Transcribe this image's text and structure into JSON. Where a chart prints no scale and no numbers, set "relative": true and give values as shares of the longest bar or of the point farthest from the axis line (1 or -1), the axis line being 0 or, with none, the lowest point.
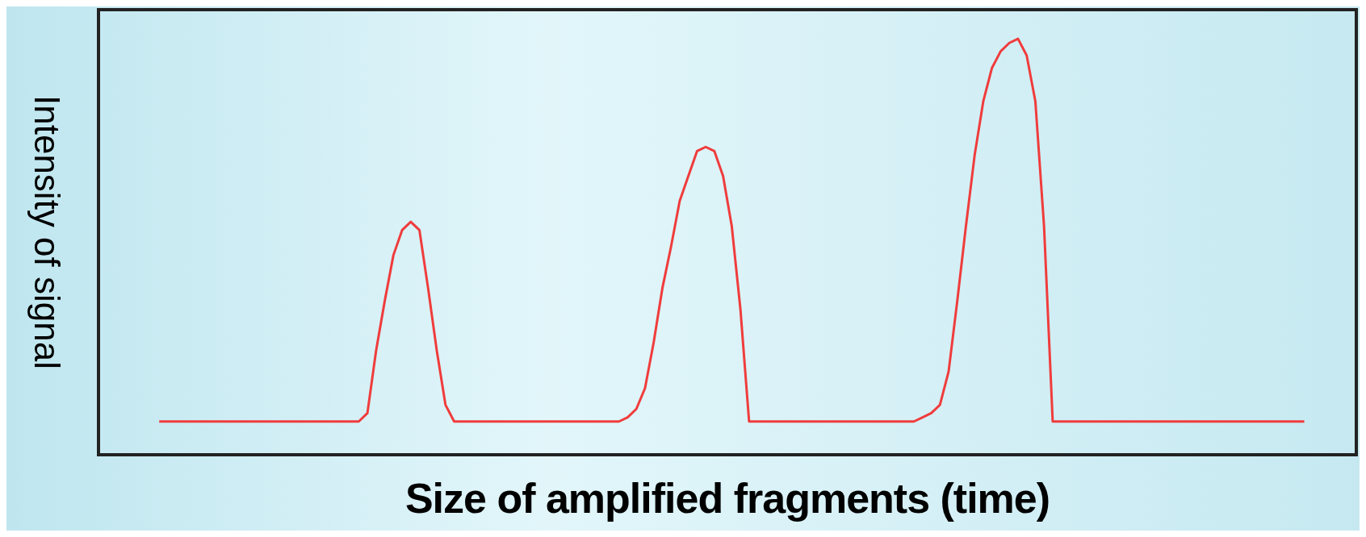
{
  "chart_data": {
    "type": "line",
    "relative": true,
    "xlabel": "Size of amplified fragments (time)",
    "ylabel": "Intensity of signal",
    "categories": [
      null,
      null,
      null,
      null,
      null,
      null,
      null,
      null,
      null,
      null,
      null,
      null,
      null,
      null,
      null,
      null,
      null,
      null,
      null,
      null,
      null,
      null,
      null,
      null,
      null,
      null,
      null,
      null,
      null,
      null,
      null,
      null,
      null,
      null,
      null,
      null,
      null,
      null,
      null,
      null,
      null,
      null,
      null,
      null,
      null,
      null,
      null,
      null,
      null,
      null,
      null,
      null,
      null,
      null,
      null,
      null,
      null,
      null,
      null,
      null,
      null,
      null,
      null,
      null,
      null,
      null,
      null,
      null,
      null,
      null,
      null,
      null,
      null,
      null,
      null,
      null,
      null,
      null,
      null,
      null,
      null,
      null,
      null,
      null,
      null,
      null,
      null,
      null,
      null,
      null,
      null,
      null,
      null,
      null,
      null,
      null,
      null,
      null,
      null,
      null,
      null,
      null,
      null,
      null,
      null,
      null,
      null,
      null,
      null,
      null,
      null,
      null,
      null,
      null,
      null,
      null,
      null,
      null,
      null,
      null,
      null,
      null,
      null,
      null,
      null,
      null,
      null,
      null,
      null,
      null,
      null,
      null,
      null,
      null,
      null,
      null,
      null,
      null,
      null,
      null,
      null,
      null,
      null,
      null,
      null,
      null
    ],
    "series": [
      {
        "color": "#f03c3c",
        "values": [
          null,
          null,
          null,
          null,
          null,
          null,
          null,
          0.08,
          0.08,
          0.08,
          0.08,
          0.08,
          0.08,
          0.08,
          0.08,
          0.08,
          0.08,
          0.08,
          0.08,
          0.08,
          0.08,
          0.08,
          0.08,
          0.08,
          0.08,
          0.08,
          0.08,
          0.08,
          0.08,
          0.08,
          0.08,
          0.1,
          0.25,
          0.37,
          0.48,
          0.54,
          0.56,
          0.54,
          0.4,
          0.25,
          0.12,
          0.08,
          0.08,
          0.08,
          0.08,
          0.08,
          0.08,
          0.08,
          0.08,
          0.08,
          0.08,
          0.08,
          0.08,
          0.08,
          0.08,
          0.08,
          0.08,
          0.08,
          0.08,
          0.08,
          0.08,
          0.09,
          0.11,
          0.16,
          0.27,
          0.4,
          0.5,
          0.61,
          0.67,
          0.73,
          0.74,
          0.73,
          0.67,
          0.55,
          0.35,
          0.08,
          0.08,
          0.08,
          0.08,
          0.08,
          0.08,
          0.08,
          0.08,
          0.08,
          0.08,
          0.08,
          0.08,
          0.08,
          0.08,
          0.08,
          0.08,
          0.08,
          0.08,
          0.08,
          0.08,
          0.09,
          0.1,
          0.12,
          0.2,
          0.37,
          0.55,
          0.72,
          0.85,
          0.93,
          0.97,
          0.99,
          1,
          0.96,
          0.85,
          0.55,
          0.08,
          0.08,
          0.08,
          0.08,
          0.08,
          0.08,
          0.08,
          0.08,
          0.08,
          0.08,
          0.08,
          0.08,
          0.08,
          0.08,
          0.08,
          0.08,
          0.08,
          0.08,
          0.08,
          0.08,
          0.08,
          0.08,
          0.08,
          0.08,
          0.08,
          0.08,
          0.08,
          0.08,
          0.08,
          0.08,
          null,
          null,
          null,
          null,
          null,
          null
        ]
      }
    ]
  }
}
